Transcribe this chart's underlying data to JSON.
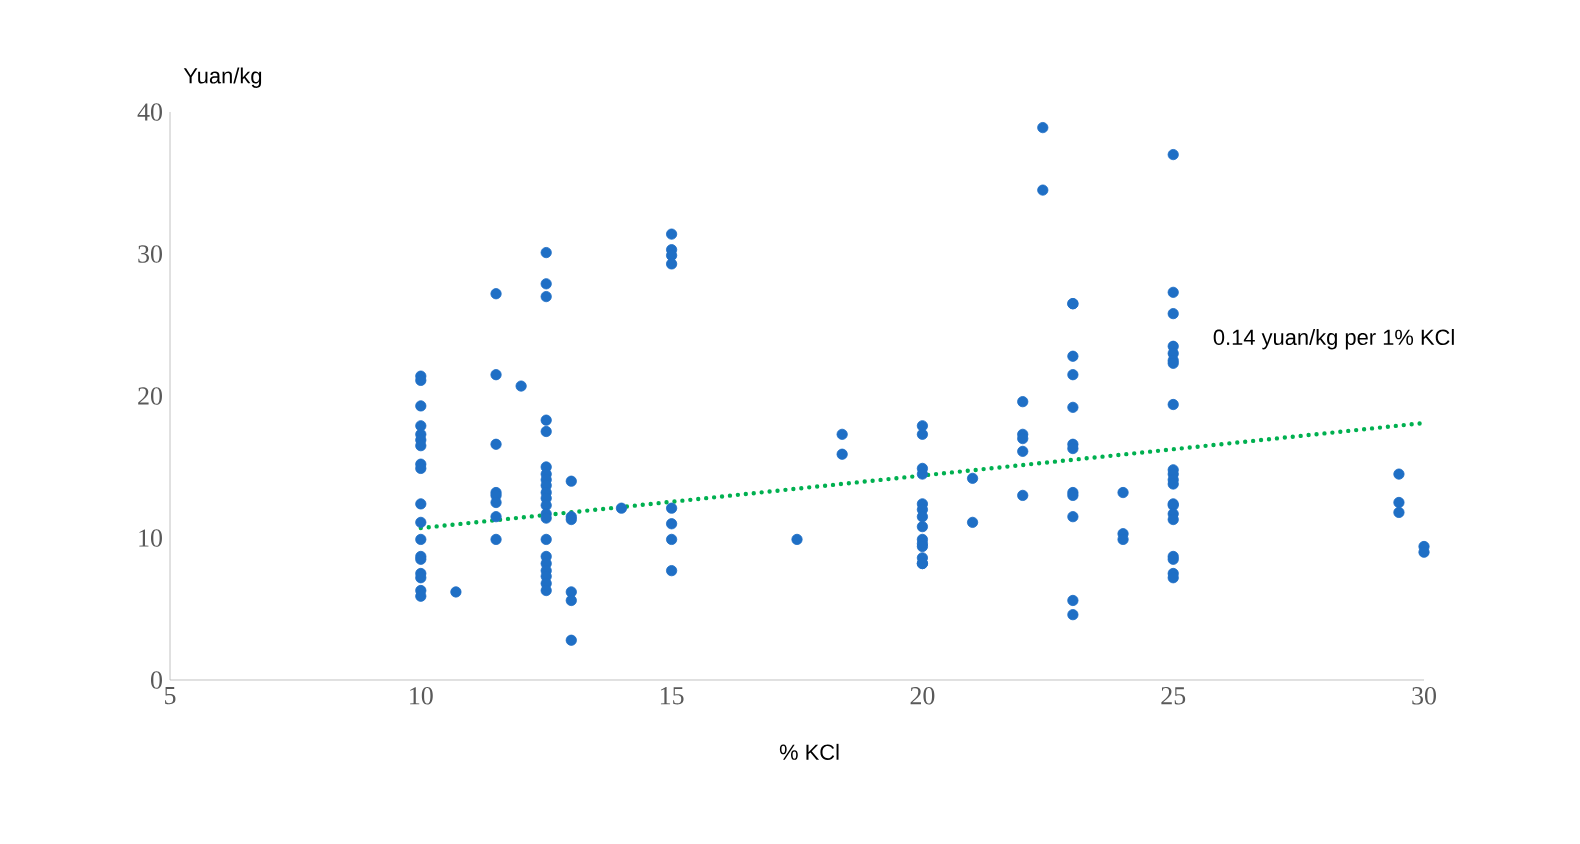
{
  "chart_data": {
    "type": "scatter",
    "xlabel": "% KCl",
    "ylabel": "Yuan/kg",
    "xlim": [
      5,
      30
    ],
    "ylim": [
      0,
      40
    ],
    "xticks": [
      5,
      10,
      15,
      20,
      25,
      30
    ],
    "yticks": [
      0,
      10,
      20,
      30,
      40
    ],
    "marker": "circle",
    "series": [
      {
        "color": "#1f6fc5",
        "x": [
          10,
          10,
          10,
          10,
          10,
          10,
          10,
          10,
          10,
          10,
          10,
          10,
          10,
          10,
          10,
          10,
          10,
          10,
          10.7,
          11.5,
          11.5,
          11.5,
          11.5,
          11.5,
          11.5,
          11.5,
          11.5,
          12,
          12.5,
          12.5,
          12.5,
          12.5,
          12.5,
          12.5,
          12.5,
          12.5,
          12.5,
          12.5,
          12.5,
          12.5,
          12.5,
          12.5,
          12.5,
          12.5,
          12.5,
          12.5,
          12.5,
          12.5,
          12.5,
          13,
          13,
          13,
          13,
          13,
          13,
          14,
          15,
          15,
          15,
          15,
          15,
          15,
          15,
          15,
          17.5,
          18.4,
          18.4,
          20,
          20,
          20,
          20,
          20,
          20,
          20,
          20,
          20,
          20,
          20,
          20,
          20,
          20,
          21,
          21,
          22,
          22,
          22,
          22,
          22,
          22.4,
          22.4,
          23,
          23,
          23,
          23,
          23,
          23,
          23,
          23,
          23,
          23,
          23,
          23,
          24,
          24,
          24,
          25,
          25,
          25,
          25,
          25,
          25,
          25,
          25,
          25,
          25,
          25,
          25,
          25,
          25,
          25,
          25,
          25,
          25,
          25,
          25,
          29.5,
          29.5,
          29.5,
          30,
          30
        ],
        "values": [
          21.4,
          21.1,
          19.3,
          17.9,
          17.3,
          16.9,
          16.5,
          15.2,
          14.9,
          12.4,
          11.1,
          9.9,
          8.7,
          8.5,
          7.5,
          7.2,
          6.3,
          5.9,
          6.2,
          27.2,
          21.5,
          16.6,
          13.2,
          13.0,
          12.5,
          11.5,
          9.9,
          20.7,
          30.1,
          27.9,
          27.0,
          18.3,
          17.5,
          15.0,
          14.5,
          14.1,
          13.7,
          13.2,
          12.8,
          12.3,
          11.7,
          11.4,
          9.9,
          8.7,
          8.2,
          7.7,
          7.3,
          6.8,
          6.3,
          14.0,
          11.5,
          11.3,
          6.2,
          5.6,
          2.8,
          12.1,
          31.4,
          30.3,
          29.9,
          29.3,
          12.1,
          11.0,
          9.9,
          7.7,
          9.9,
          17.3,
          15.9,
          17.9,
          17.3,
          14.9,
          14.5,
          12.4,
          12.0,
          11.5,
          10.8,
          9.9,
          9.6,
          9.4,
          8.6,
          8.2,
          8.2,
          14.2,
          11.1,
          19.6,
          17.3,
          17.0,
          16.1,
          13.0,
          38.9,
          34.5,
          26.5,
          22.8,
          21.5,
          19.2,
          16.6,
          16.3,
          13.2,
          13.0,
          11.5,
          5.6,
          4.6,
          26.5,
          13.2,
          10.3,
          9.9,
          37.0,
          27.3,
          25.8,
          23.5,
          23.0,
          22.5,
          22.3,
          19.4,
          14.8,
          14.5,
          14.1,
          13.8,
          12.4,
          12.3,
          11.7,
          11.3,
          8.7,
          8.5,
          7.5,
          7.2,
          14.5,
          12.5,
          11.8,
          9.4,
          9.0
        ]
      },
      {
        "type": "line",
        "color": "#00b050",
        "line_style": "dotted",
        "marker": "none",
        "x": [
          10,
          30
        ],
        "values": [
          10.7,
          18.1
        ]
      }
    ],
    "annotations": [
      "0.14 yuan/kg per 1% KCl"
    ]
  }
}
